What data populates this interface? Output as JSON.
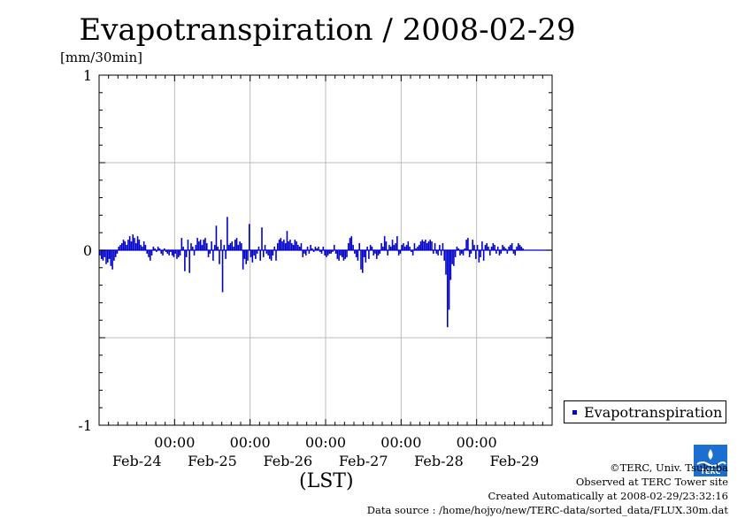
{
  "header": {
    "title": "Evapotranspiration / 2008-02-29"
  },
  "colors": {
    "series": "#0000cc",
    "grid": "#bbbbbb",
    "axis": "#000000",
    "logo": "#1a6fd0"
  },
  "icons": {
    "logo": "terc-logo-icon"
  },
  "legend": {
    "label": "Evapotranspiration",
    "placement": "right"
  },
  "footer": {
    "copyright": "©TERC, Univ. Tsukuba",
    "observed": "Observed at TERC Tower site",
    "created": "Created Automatically at 2008-02-29/23:32:16",
    "source": "Data source : /home/hojyo/new/TERC-data/sorted_data/FLUX.30m.dat",
    "logo_text": "TERC"
  },
  "chart_data": {
    "type": "bar",
    "title": "Evapotranspiration / 2008-02-29",
    "ylabel": "[mm/30min]",
    "xlabel": "(LST)",
    "ylim": [
      -1,
      1
    ],
    "yticks": [
      "1",
      "0",
      "-1"
    ],
    "xlim_days": [
      0,
      6
    ],
    "time_ticks": [
      "00:00",
      "00:00",
      "00:00",
      "00:00",
      "00:00"
    ],
    "day_labels": [
      "Feb-24",
      "Feb-25",
      "Feb-26",
      "Feb-27",
      "Feb-28",
      "Feb-29"
    ],
    "grid": true,
    "interval_minutes": 30,
    "series": [
      {
        "name": "Evapotranspiration",
        "values": [
          -0.03,
          -0.05,
          -0.06,
          -0.04,
          -0.08,
          -0.07,
          -0.05,
          -0.09,
          -0.11,
          -0.06,
          -0.04,
          -0.02,
          0.02,
          0.03,
          0.04,
          0.06,
          0.05,
          0.03,
          0.06,
          0.08,
          0.05,
          0.09,
          0.07,
          0.04,
          0.08,
          0.06,
          0.03,
          0.02,
          0.05,
          0.03,
          -0.02,
          -0.04,
          -0.06,
          -0.03,
          0.02,
          0.01,
          -0.01,
          0.02,
          0.01,
          -0.02,
          -0.03,
          0.01,
          -0.01,
          -0.02,
          -0.03,
          -0.01,
          -0.03,
          -0.04,
          -0.02,
          -0.05,
          -0.04,
          -0.03,
          0.07,
          0.02,
          -0.12,
          -0.04,
          0.06,
          -0.13,
          0.04,
          0.02,
          -0.03,
          0.03,
          0.07,
          0.05,
          0.06,
          0.03,
          0.06,
          0.07,
          0.04,
          -0.04,
          -0.02,
          0.05,
          -0.06,
          0.03,
          0.14,
          0.02,
          -0.08,
          0.06,
          -0.24,
          0.03,
          -0.05,
          0.19,
          0.03,
          0.04,
          0.05,
          0.02,
          0.06,
          0.07,
          0.03,
          0.05,
          0.04,
          -0.11,
          -0.05,
          -0.08,
          -0.06,
          0.15,
          -0.04,
          -0.07,
          -0.03,
          -0.05,
          -0.02,
          0.02,
          -0.06,
          0.13,
          -0.04,
          0.03,
          -0.02,
          -0.03,
          -0.05,
          -0.06,
          -0.03,
          0.02,
          -0.06,
          0.04,
          0.06,
          0.07,
          0.05,
          0.06,
          0.04,
          0.11,
          0.05,
          0.06,
          0.04,
          0.03,
          0.06,
          0.05,
          0.03,
          0.02,
          0.04,
          -0.04,
          -0.02,
          -0.03,
          0.02,
          -0.02,
          0.03,
          0.01,
          -0.01,
          0.02,
          0.01,
          0.02,
          -0.01,
          -0.02,
          0.02,
          -0.03,
          -0.04,
          -0.03,
          -0.02,
          -0.02,
          -0.01,
          0.03,
          -0.02,
          -0.05,
          -0.06,
          -0.03,
          -0.04,
          -0.06,
          -0.05,
          -0.04,
          0.04,
          0.07,
          0.08,
          0.03,
          -0.02,
          -0.04,
          -0.06,
          0.04,
          -0.11,
          -0.13,
          -0.04,
          -0.07,
          0.02,
          -0.05,
          0.03,
          0.02,
          -0.03,
          -0.02,
          -0.05,
          -0.03,
          -0.02,
          0.04,
          0.02,
          0.08,
          0.05,
          -0.03,
          0.03,
          0.02,
          0.06,
          0.03,
          0.04,
          0.08,
          -0.03,
          -0.02,
          0.03,
          0.04,
          0.02,
          0.03,
          0.05,
          0.02,
          -0.01,
          -0.03,
          0.04,
          0.01,
          0.02,
          0.03,
          0.05,
          0.06,
          0.05,
          0.06,
          0.04,
          0.05,
          0.06,
          0.05,
          -0.02,
          0.04,
          -0.02,
          -0.03,
          0.03,
          -0.03,
          0.04,
          -0.06,
          -0.14,
          -0.44,
          -0.34,
          -0.17,
          -0.08,
          -0.09,
          -0.04,
          0.02,
          0.01,
          -0.03,
          -0.02,
          -0.03,
          0.01,
          0.06,
          0.07,
          -0.04,
          -0.02,
          0.06,
          0.03,
          -0.05,
          0.03,
          -0.07,
          -0.04,
          0.05,
          -0.06,
          0.03,
          0.04,
          0.02,
          -0.03,
          0.02,
          0.04,
          0.03,
          -0.02,
          0.02,
          -0.03,
          -0.02,
          0.03,
          0.02,
          0.01,
          -0.02,
          0.02,
          0.03,
          0.04,
          -0.02,
          -0.03,
          0.02,
          0.04,
          0.03,
          0.02,
          0.01
        ]
      }
    ]
  }
}
